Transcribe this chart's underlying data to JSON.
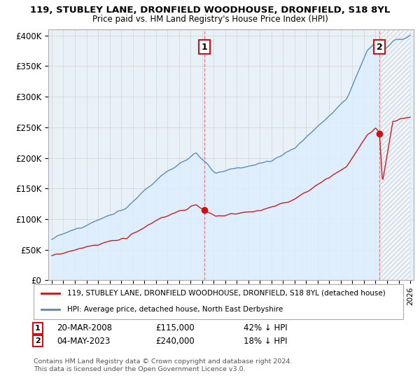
{
  "title_line1": "119, STUBLEY LANE, DRONFIELD WOODHOUSE, DRONFIELD, S18 8YL",
  "title_line2": "Price paid vs. HM Land Registry's House Price Index (HPI)",
  "ylim": [
    0,
    410000
  ],
  "yticks": [
    0,
    50000,
    100000,
    150000,
    200000,
    250000,
    300000,
    350000,
    400000
  ],
  "ytick_labels": [
    "£0",
    "£50K",
    "£100K",
    "£150K",
    "£200K",
    "£250K",
    "£300K",
    "£350K",
    "£400K"
  ],
  "hpi_color": "#5588bb",
  "hpi_fill_color": "#ddeeff",
  "price_color": "#cc1111",
  "dashed_color": "#dd6666",
  "annotation_box_color": "#cc1111",
  "background_color": "#ffffff",
  "plot_bg_color": "#e8f0f8",
  "grid_color": "#cccccc",
  "legend_label_price": "119, STUBLEY LANE, DRONFIELD WOODHOUSE, DRONFIELD, S18 8YL (detached house)",
  "legend_label_hpi": "HPI: Average price, detached house, North East Derbyshire",
  "sale1_label": "1",
  "sale1_date": "20-MAR-2008",
  "sale1_price": "£115,000",
  "sale1_pct": "42% ↓ HPI",
  "sale2_label": "2",
  "sale2_date": "04-MAY-2023",
  "sale2_price": "£240,000",
  "sale2_pct": "18% ↓ HPI",
  "footnote": "Contains HM Land Registry data © Crown copyright and database right 2024.\nThis data is licensed under the Open Government Licence v3.0.",
  "sale1_year": 2008.2,
  "sale1_value": 115000,
  "sale2_year": 2023.34,
  "sale2_value": 240000,
  "xlim_start": 1994.7,
  "xlim_end": 2026.3
}
